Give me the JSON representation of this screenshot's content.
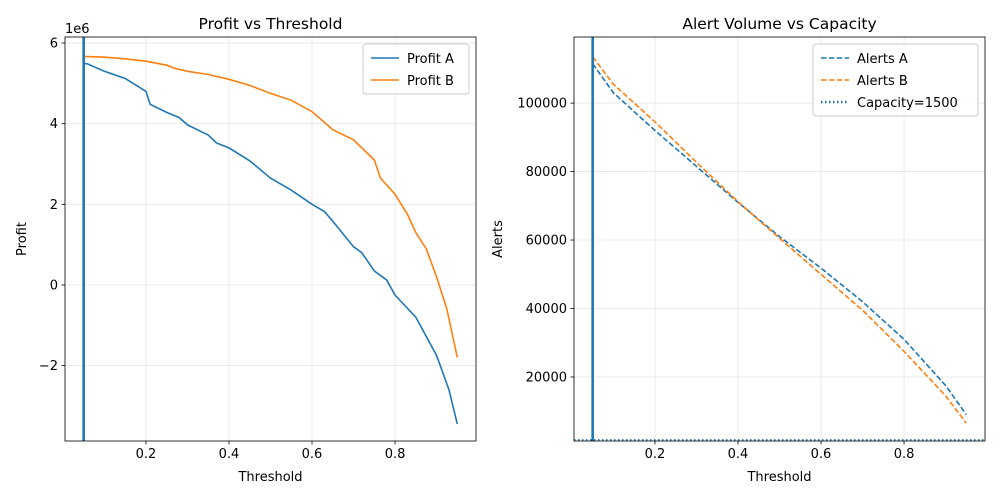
{
  "chart_data": [
    {
      "type": "line",
      "title": "Profit vs Threshold",
      "xlabel": "Threshold",
      "ylabel": "Profit",
      "offset_text": "1e6",
      "xlim": [
        0.005,
        0.995
      ],
      "ylim": [
        -3870000,
        6150000
      ],
      "grid": true,
      "legend": "top-right",
      "xticks": [
        0.2,
        0.4,
        0.6,
        0.8
      ],
      "xtick_labels": [
        "0.2",
        "0.4",
        "0.6",
        "0.8"
      ],
      "yticks": [
        -2000000,
        0,
        2000000,
        4000000,
        6000000
      ],
      "ytick_labels": [
        "−2",
        "0",
        "2",
        "4",
        "6"
      ],
      "vline": {
        "x": 0.05,
        "color": "#1f77b4"
      },
      "series": [
        {
          "name": "Profit A",
          "color": "#1f77b4",
          "style": "solid",
          "x": [
            0.05,
            0.06,
            0.1,
            0.15,
            0.2,
            0.21,
            0.25,
            0.28,
            0.3,
            0.35,
            0.37,
            0.4,
            0.45,
            0.5,
            0.55,
            0.6,
            0.63,
            0.65,
            0.7,
            0.72,
            0.75,
            0.78,
            0.8,
            0.85,
            0.9,
            0.93,
            0.95
          ],
          "y": [
            5500000,
            5480000,
            5300000,
            5120000,
            4800000,
            4480000,
            4280000,
            4150000,
            3970000,
            3720000,
            3520000,
            3400000,
            3080000,
            2650000,
            2350000,
            2000000,
            1820000,
            1580000,
            950000,
            800000,
            350000,
            120000,
            -250000,
            -800000,
            -1750000,
            -2600000,
            -3450000
          ]
        },
        {
          "name": "Profit B",
          "color": "#ff7f0e",
          "style": "solid",
          "x": [
            0.05,
            0.1,
            0.15,
            0.2,
            0.25,
            0.27,
            0.3,
            0.35,
            0.4,
            0.45,
            0.5,
            0.55,
            0.6,
            0.65,
            0.7,
            0.75,
            0.765,
            0.8,
            0.83,
            0.85,
            0.875,
            0.9,
            0.925,
            0.95
          ],
          "y": [
            5670000,
            5650000,
            5610000,
            5550000,
            5450000,
            5370000,
            5300000,
            5220000,
            5100000,
            4950000,
            4750000,
            4580000,
            4300000,
            3850000,
            3600000,
            3100000,
            2650000,
            2250000,
            1750000,
            1300000,
            900000,
            200000,
            -600000,
            -1800000
          ]
        }
      ]
    },
    {
      "type": "line",
      "title": "Alert Volume vs Capacity",
      "xlabel": "Threshold",
      "ylabel": "Alerts",
      "xlim": [
        0.005,
        0.995
      ],
      "ylim": [
        1300,
        119300
      ],
      "grid": true,
      "legend": "top-right",
      "xticks": [
        0.2,
        0.4,
        0.6,
        0.8
      ],
      "xtick_labels": [
        "0.2",
        "0.4",
        "0.6",
        "0.8"
      ],
      "yticks": [
        20000,
        40000,
        60000,
        80000,
        100000
      ],
      "ytick_labels": [
        "20000",
        "40000",
        "60000",
        "80000",
        "100000"
      ],
      "vline": {
        "x": 0.05,
        "color": "#1f77b4"
      },
      "series": [
        {
          "name": "Alerts A",
          "color": "#1f77b4",
          "style": "dashed",
          "x": [
            0.05,
            0.1,
            0.2,
            0.3,
            0.4,
            0.5,
            0.6,
            0.7,
            0.8,
            0.9,
            0.95
          ],
          "y": [
            111500,
            103000,
            92000,
            81500,
            71000,
            61000,
            51800,
            42000,
            31000,
            17500,
            9000
          ]
        },
        {
          "name": "Alerts B",
          "color": "#ff7f0e",
          "style": "dashed",
          "x": [
            0.05,
            0.1,
            0.2,
            0.3,
            0.4,
            0.5,
            0.6,
            0.7,
            0.8,
            0.9,
            0.95
          ],
          "y": [
            113500,
            105500,
            94500,
            82700,
            71200,
            60500,
            50000,
            39500,
            27500,
            14500,
            6500
          ]
        },
        {
          "name": "Capacity=1500",
          "color": "#1f77b4",
          "style": "dotted",
          "hline": 1500
        }
      ]
    }
  ]
}
